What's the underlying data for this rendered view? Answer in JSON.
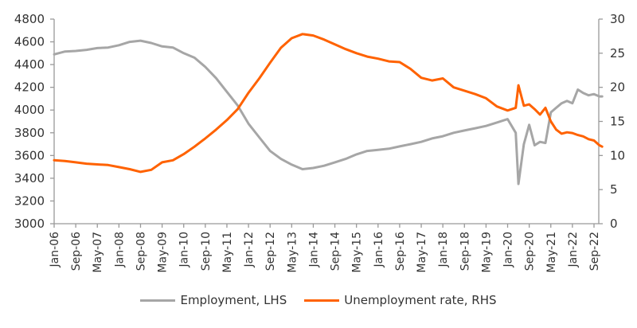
{
  "chart_data": {
    "type": "line",
    "title": "",
    "xlabel": "",
    "ylabel_left": "",
    "ylabel_right": "",
    "y_left": {
      "min": 3000,
      "max": 4800,
      "ticks": [
        3000,
        3200,
        3400,
        3600,
        3800,
        4000,
        4200,
        4400,
        4600,
        4800
      ]
    },
    "y_right": {
      "min": 0,
      "max": 30,
      "ticks": [
        0,
        5,
        10,
        15,
        20,
        25,
        30
      ]
    },
    "x_tick_labels": [
      "Jan-06",
      "Sep-06",
      "May-07",
      "Jan-08",
      "Sep-08",
      "May-09",
      "Jan-10",
      "Sep-10",
      "May-11",
      "Jan-12",
      "Sep-12",
      "May-13",
      "Jan-14",
      "Sep-14",
      "May-15",
      "Jan-16",
      "Sep-16",
      "May-17",
      "Jan-18",
      "Sep-18",
      "May-19",
      "Jan-20",
      "Sep-20",
      "May-21",
      "Jan-22",
      "Sep-22"
    ],
    "grid": false,
    "legend_position": "bottom",
    "x": [
      "Jan-06",
      "May-06",
      "Sep-06",
      "Jan-07",
      "May-07",
      "Sep-07",
      "Jan-08",
      "May-08",
      "Sep-08",
      "Jan-09",
      "May-09",
      "Sep-09",
      "Jan-10",
      "May-10",
      "Sep-10",
      "Jan-11",
      "May-11",
      "Sep-11",
      "Jan-12",
      "May-12",
      "Sep-12",
      "Jan-13",
      "May-13",
      "Sep-13",
      "Jan-14",
      "May-14",
      "Sep-14",
      "Jan-15",
      "May-15",
      "Sep-15",
      "Jan-16",
      "May-16",
      "Sep-16",
      "Jan-17",
      "May-17",
      "Sep-17",
      "Jan-18",
      "May-18",
      "Sep-18",
      "Jan-19",
      "May-19",
      "Sep-19",
      "Jan-20",
      "Apr-20",
      "May-20",
      "Jul-20",
      "Sep-20",
      "Nov-20",
      "Jan-21",
      "Mar-21",
      "May-21",
      "Jul-21",
      "Sep-21",
      "Nov-21",
      "Jan-22",
      "Mar-22",
      "May-22",
      "Jul-22",
      "Sep-22",
      "Nov-22",
      "Dec-22"
    ],
    "series": [
      {
        "name": "Employment, LHS",
        "axis": "left",
        "color": "#a6a6a6",
        "values": [
          4490,
          4515,
          4520,
          4530,
          4545,
          4550,
          4570,
          4600,
          4610,
          4590,
          4560,
          4550,
          4500,
          4460,
          4380,
          4280,
          4160,
          4040,
          3880,
          3760,
          3640,
          3570,
          3520,
          3480,
          3490,
          3510,
          3540,
          3570,
          3610,
          3640,
          3650,
          3660,
          3680,
          3700,
          3720,
          3750,
          3770,
          3800,
          3820,
          3840,
          3860,
          3890,
          3920,
          3800,
          3350,
          3700,
          3870,
          3690,
          3720,
          3710,
          3980,
          4020,
          4060,
          4080,
          4060,
          4180,
          4150,
          4130,
          4140,
          4120,
          4120
        ]
      },
      {
        "name": "Unemployment rate, RHS",
        "axis": "right",
        "color": "#ff6200",
        "values": [
          9.3,
          9.2,
          9.0,
          8.8,
          8.7,
          8.6,
          8.3,
          8.0,
          7.6,
          7.9,
          9.0,
          9.3,
          10.2,
          11.3,
          12.5,
          13.8,
          15.2,
          16.8,
          19.2,
          21.3,
          23.6,
          25.8,
          27.2,
          27.8,
          27.6,
          27.0,
          26.3,
          25.6,
          25.0,
          24.5,
          24.2,
          23.8,
          23.7,
          22.7,
          21.4,
          21.0,
          21.3,
          20.0,
          19.5,
          19.0,
          18.4,
          17.2,
          16.6,
          17.0,
          20.3,
          17.3,
          17.5,
          16.8,
          16.0,
          17.0,
          15.0,
          13.8,
          13.2,
          13.4,
          13.3,
          13.0,
          12.8,
          12.4,
          12.2,
          11.5,
          11.3
        ]
      }
    ]
  },
  "legend": {
    "items": [
      {
        "label": "Employment, LHS",
        "color": "#a6a6a6"
      },
      {
        "label": "Unemployment rate, RHS",
        "color": "#ff6200"
      }
    ]
  }
}
